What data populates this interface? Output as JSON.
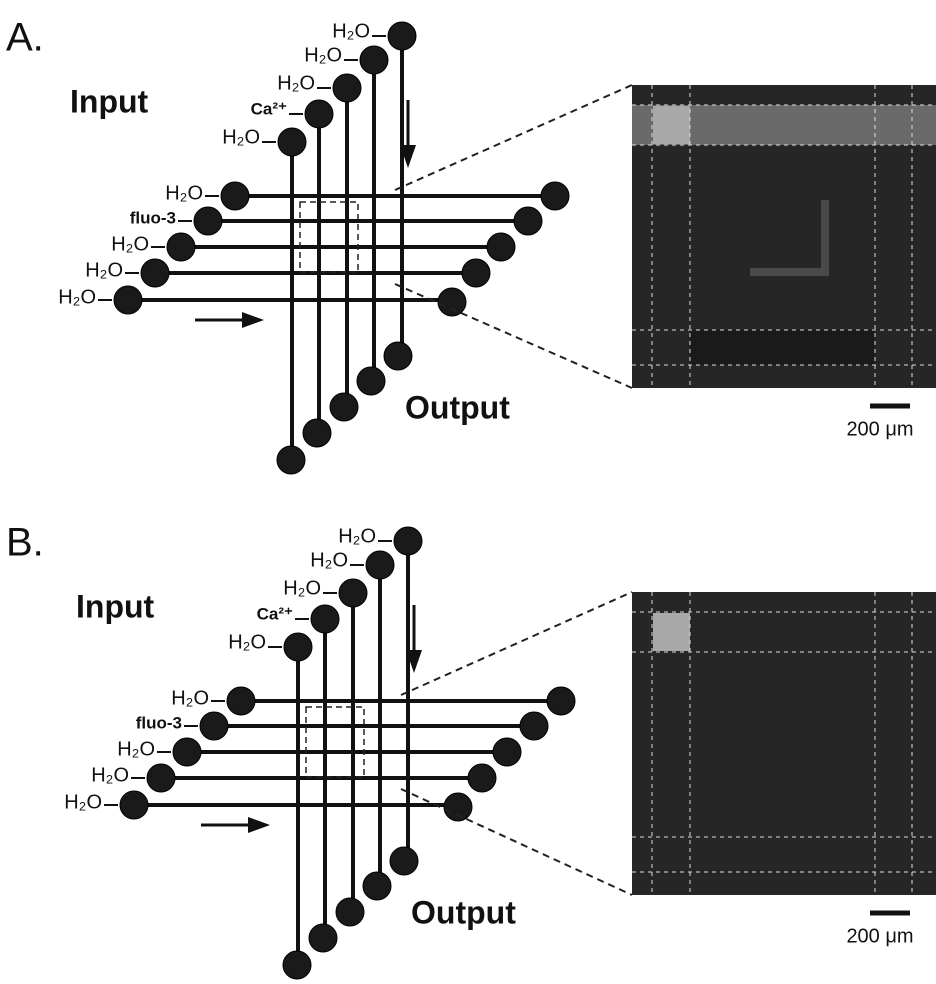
{
  "panels": [
    {
      "label": "A.",
      "input": "Input",
      "output": "Output",
      "input_labels": [
        "H₂O",
        "H₂O",
        "H₂O",
        "Ca²⁺",
        "H₂O"
      ],
      "channel_labels": [
        "H₂O",
        "fluo-3",
        "H₂O",
        "H₂O",
        "H₂O"
      ],
      "scale_bar": "200 μm"
    },
    {
      "label": "B.",
      "input": "Input",
      "output": "Output",
      "input_labels": [
        "H₂O",
        "H₂O",
        "H₂O",
        "Ca²⁺",
        "H₂O"
      ],
      "channel_labels": [
        "H₂O",
        "fluo-3",
        "H₂O",
        "H₂O",
        "H₂O"
      ],
      "scale_bar": "200 μm"
    }
  ]
}
